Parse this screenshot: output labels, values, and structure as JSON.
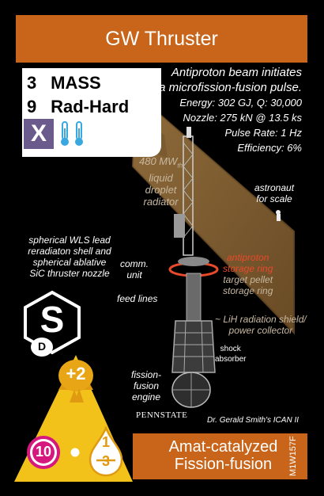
{
  "card": {
    "title": "GW Thruster",
    "mass_value": "3",
    "mass_label": "MASS",
    "radhard_value": "9",
    "radhard_label": "Rad-Hard",
    "type_letter": "X",
    "description": {
      "line1": "Antiproton beam initiates",
      "line2": "a microfission-fusion pulse.",
      "energy": "Energy: 302 GJ, Q: 30,000",
      "nozzle": "Nozzle: 275 kN @ 13.5 ks",
      "pulse_rate": "Pulse Rate: 1 Hz",
      "efficiency": "Efficiency: 6%"
    },
    "labels": {
      "radiator_1": "480 MW",
      "radiator_sub": "th",
      "radiator_2": "liquid",
      "radiator_3": "droplet",
      "radiator_4": "radiator",
      "astronaut_1": "astronaut",
      "astronaut_2": "for scale",
      "wls_1": "spherical WLS lead",
      "wls_2": "reradiaton shell and",
      "wls_3": "spherical ablative",
      "wls_4": "SiC thruster nozzle",
      "comm_1": "comm.",
      "comm_2": "unit",
      "antiproton_1": "antiproton",
      "antiproton_2": "storage ring",
      "pellet_1": "target pellet",
      "pellet_2": "storage ring",
      "feed": "feed lines",
      "lih_1": "~ LiH radiation shield/",
      "lih_2": "power collector",
      "shock_1": "shock",
      "shock_2": "absorber",
      "engine_1": "fission-",
      "engine_2": "fusion",
      "engine_3": "engine"
    },
    "pennstate": "PENNSTATE",
    "credit": "Dr. Gerald Smith's ICAN II",
    "supply_letter": "S",
    "supply_sub": "D",
    "thrust_mod": "+2",
    "thrust": "10",
    "fuel_num": "1",
    "fuel_den": "3",
    "footer_line1": "Amat-catalyzed",
    "footer_line2": "Fission-fusion",
    "code": "M1W157F",
    "colors": {
      "header": "#c8651a",
      "yellow": "#f2c21b",
      "magenta": "#d6177e",
      "purple": "#6b5a8c",
      "thermo": "#3aa8e0"
    }
  }
}
